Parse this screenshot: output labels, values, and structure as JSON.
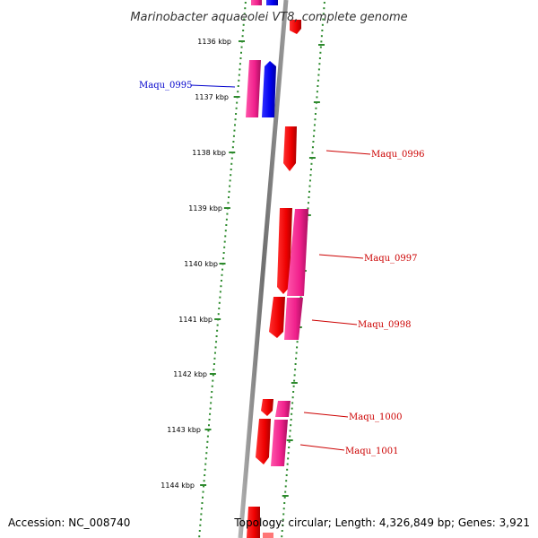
{
  "title": "Marinobacter aquaeolei VT8, complete genome",
  "footer": {
    "accession": "Accession: NC_008740",
    "topology": "Topology: circular; Length: 4,326,849 bp; Genes: 3,921"
  },
  "kbp_ticks": [
    "1136 kbp",
    "1137 kbp",
    "1138 kbp",
    "1139 kbp",
    "1140 kbp",
    "1141 kbp",
    "1142 kbp",
    "1143 kbp",
    "1144 kbp"
  ],
  "gene_labels": [
    {
      "id": "maqu-0995",
      "text": "Maqu_0995",
      "color": "#0000cc"
    },
    {
      "id": "maqu-0996",
      "text": "Maqu_0996",
      "color": "#cc0000"
    },
    {
      "id": "maqu-0997",
      "text": "Maqu_0997",
      "color": "#cc0000"
    },
    {
      "id": "maqu-0998",
      "text": "Maqu_0998",
      "color": "#cc0000"
    },
    {
      "id": "maqu-1000",
      "text": "Maqu_1000",
      "color": "#cc0000"
    },
    {
      "id": "maqu-1001",
      "text": "Maqu_1001",
      "color": "#cc0000"
    }
  ],
  "colors": {
    "backbone": "#808080",
    "ticks": "#2d8a2d",
    "red_gene": "#ff0000",
    "magenta_gene": "#ff3399",
    "blue_gene": "#0000ff"
  }
}
